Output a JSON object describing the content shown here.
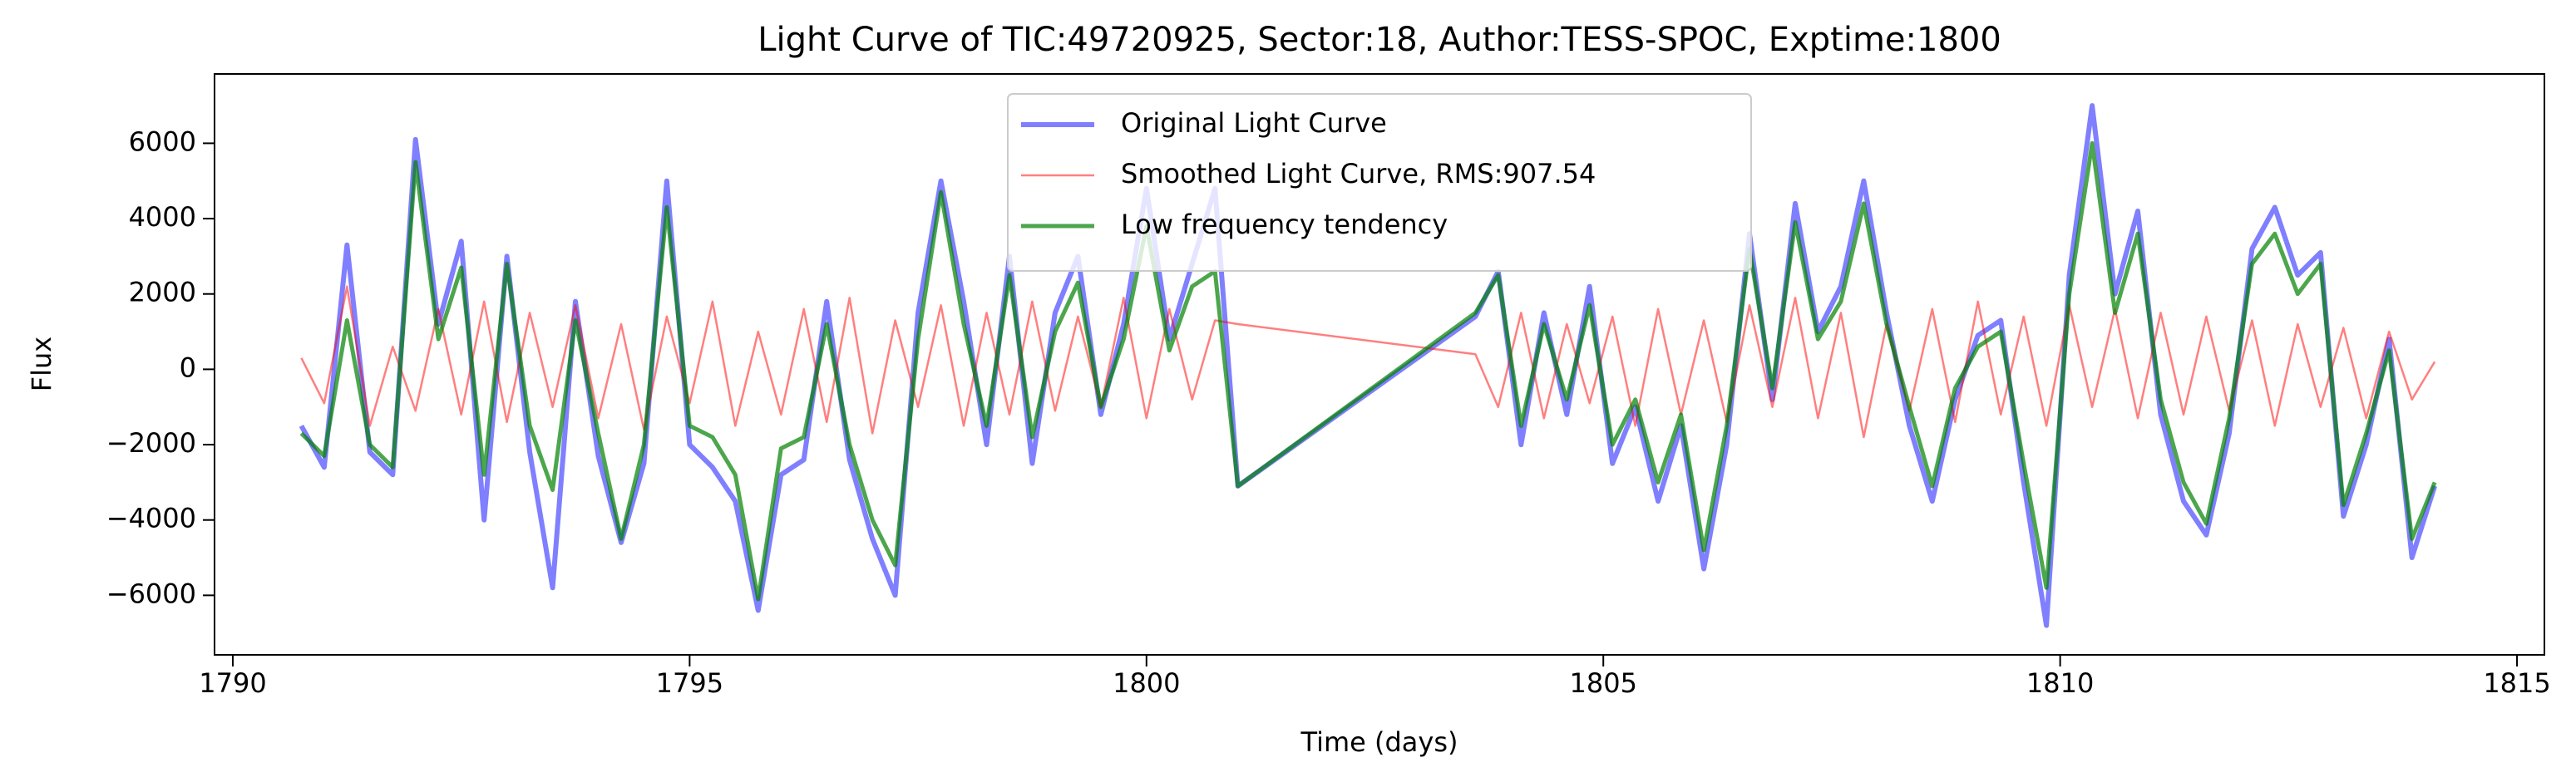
{
  "chart_data": {
    "type": "line",
    "title": "Light Curve of TIC:49720925, Sector:18, Author:TESS-SPOC, Exptime:1800",
    "xlabel": "Time (days)",
    "ylabel": "Flux",
    "x": [
      1790.75,
      1791,
      1791.25,
      1791.5,
      1791.75,
      1792,
      1792.25,
      1792.5,
      1792.75,
      1793,
      1793.25,
      1793.5,
      1793.75,
      1794,
      1794.25,
      1794.5,
      1794.75,
      1795,
      1795.25,
      1795.5,
      1795.75,
      1796,
      1796.25,
      1796.5,
      1796.75,
      1797,
      1797.25,
      1797.5,
      1797.75,
      1798,
      1798.25,
      1798.5,
      1798.75,
      1799,
      1799.25,
      1799.5,
      1799.75,
      1800,
      1800.25,
      1800.5,
      1800.75,
      1801,
      1803.6,
      1803.85,
      1804.1,
      1804.35,
      1804.6,
      1804.85,
      1805.1,
      1805.35,
      1805.6,
      1805.85,
      1806.1,
      1806.35,
      1806.6,
      1806.85,
      1807.1,
      1807.35,
      1807.6,
      1807.85,
      1808.1,
      1808.35,
      1808.6,
      1808.85,
      1809.1,
      1809.35,
      1809.6,
      1809.85,
      1810.1,
      1810.35,
      1810.6,
      1810.85,
      1811.1,
      1811.35,
      1811.6,
      1811.85,
      1812.1,
      1812.35,
      1812.6,
      1812.85,
      1813.1,
      1813.35,
      1813.6,
      1813.85,
      1814.1
    ],
    "series": [
      {
        "name": "Original Light Curve",
        "color": "#0000ff80",
        "values": [
          -1500,
          -2600,
          3300,
          -2200,
          -2800,
          6100,
          1200,
          3400,
          -4000,
          3000,
          -2200,
          -5800,
          1800,
          -2300,
          -4600,
          -2500,
          5000,
          -2000,
          -2600,
          -3500,
          -6400,
          -2800,
          -2400,
          1800,
          -2400,
          -4500,
          -6000,
          1500,
          5000,
          1800,
          -2000,
          3000,
          -2500,
          1500,
          3000,
          -1200,
          1200,
          4800,
          800,
          2800,
          4800,
          -3100,
          1400,
          2600,
          -2000,
          1500,
          -1200,
          2200,
          -2500,
          -1000,
          -3500,
          -1500,
          -5300,
          -2000,
          3600,
          -800,
          4400,
          1000,
          2200,
          5000,
          1500,
          -1500,
          -3500,
          -800,
          900,
          1300,
          -3000,
          -6800,
          2500,
          7000,
          2000,
          4200,
          -1200,
          -3500,
          -4400,
          -1700,
          3200,
          4300,
          2500,
          3100,
          -3900,
          -2000,
          800,
          -5000,
          -3100
        ]
      },
      {
        "name": "Smoothed Light Curve, RMS:907.54",
        "color": "#ff000080",
        "values": [
          300,
          -900,
          2200,
          -1500,
          600,
          -1100,
          1600,
          -1200,
          1800,
          -1400,
          1500,
          -1000,
          1700,
          -1300,
          1200,
          -1600,
          1400,
          -900,
          1800,
          -1500,
          1000,
          -1200,
          1600,
          -1400,
          1900,
          -1700,
          1300,
          -1000,
          1700,
          -1500,
          1500,
          -1200,
          1800,
          -1100,
          1400,
          -1000,
          1900,
          -1300,
          1600,
          -800,
          1300,
          1200,
          400,
          -1000,
          1500,
          -1300,
          1200,
          -900,
          1400,
          -1500,
          1600,
          -1200,
          1300,
          -1400,
          1700,
          -1000,
          1900,
          -1300,
          1500,
          -1800,
          1200,
          -1100,
          1600,
          -1400,
          1800,
          -1200,
          1400,
          -1500,
          1700,
          -1000,
          1600,
          -1300,
          1500,
          -1200,
          1400,
          -1100,
          1300,
          -1500,
          1200,
          -1000,
          1100,
          -1300,
          1000,
          -800,
          200
        ]
      },
      {
        "name": "Low frequency tendency",
        "color": "#008000b3",
        "values": [
          -1700,
          -2300,
          1300,
          -2000,
          -2600,
          5500,
          800,
          2700,
          -2800,
          2800,
          -1500,
          -3200,
          1300,
          -1700,
          -4500,
          -2000,
          4300,
          -1500,
          -1800,
          -2800,
          -6100,
          -2100,
          -1800,
          1200,
          -2000,
          -4000,
          -5200,
          800,
          4700,
          1200,
          -1500,
          2500,
          -1800,
          1000,
          2300,
          -1000,
          800,
          3800,
          500,
          2200,
          2600,
          -3100,
          1500,
          2500,
          -1500,
          1200,
          -800,
          1700,
          -2000,
          -800,
          -3000,
          -1200,
          -4800,
          -1500,
          3200,
          -500,
          3900,
          800,
          1800,
          4400,
          1200,
          -1000,
          -3100,
          -500,
          600,
          1000,
          -2500,
          -5800,
          2000,
          6000,
          1500,
          3600,
          -800,
          -3000,
          -4100,
          -1300,
          2800,
          3600,
          2000,
          2800,
          -3600,
          -1700,
          500,
          -4500,
          -3000
        ]
      }
    ],
    "xlim": [
      1789.8,
      1815.3
    ],
    "ylim": [
      -7580,
      7840
    ],
    "xticks": [
      1790,
      1795,
      1800,
      1805,
      1810,
      1815
    ],
    "yticks": [
      {
        "value": -6000,
        "label": "−6000"
      },
      {
        "value": -4000,
        "label": "−4000"
      },
      {
        "value": -2000,
        "label": "−2000"
      },
      0,
      2000,
      4000,
      6000
    ],
    "legend": "upper center"
  }
}
